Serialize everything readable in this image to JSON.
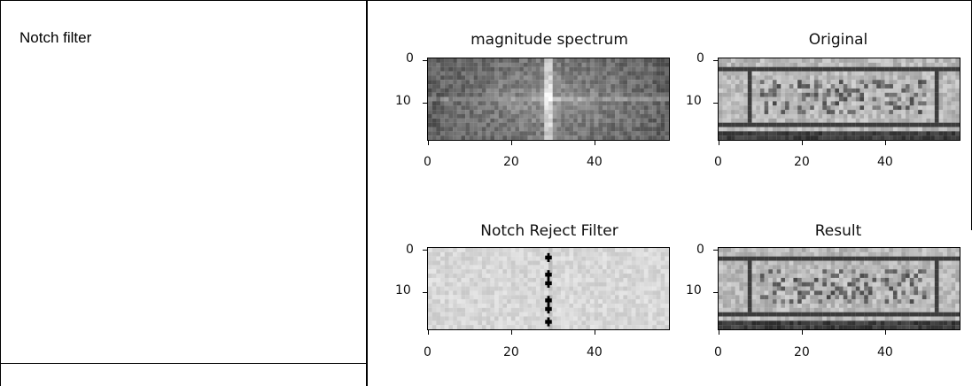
{
  "table": {
    "row_label": "Notch filter"
  },
  "figure": {
    "panels": [
      {
        "id": "magnitude-spectrum",
        "title": "magnitude spectrum",
        "kind": "spectrum",
        "yticks": [
          "0",
          "10"
        ],
        "xticks": [
          "0",
          "20",
          "40"
        ]
      },
      {
        "id": "original",
        "title": "Original",
        "kind": "photo",
        "yticks": [
          "0",
          "10"
        ],
        "xticks": [
          "0",
          "20",
          "40"
        ]
      },
      {
        "id": "notch-reject-filter",
        "title": "Notch Reject Filter",
        "kind": "filter",
        "yticks": [
          "0",
          "10"
        ],
        "xticks": [
          "0",
          "20",
          "40"
        ]
      },
      {
        "id": "result",
        "title": "Result",
        "kind": "photo",
        "yticks": [
          "0",
          "10"
        ],
        "xticks": [
          "0",
          "20",
          "40"
        ]
      }
    ],
    "image_extent": {
      "x": [
        0,
        58
      ],
      "y": [
        0,
        19
      ]
    }
  }
}
